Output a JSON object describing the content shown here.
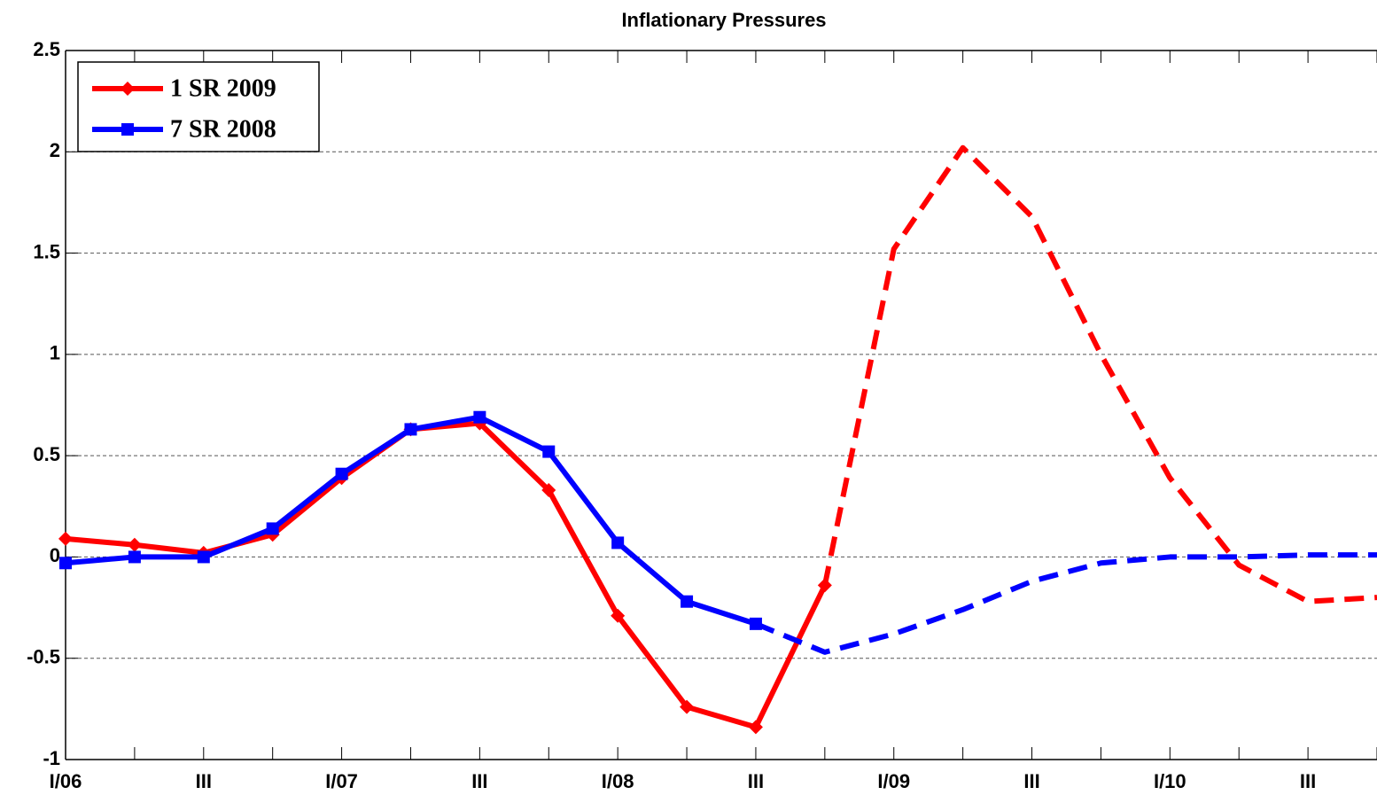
{
  "chart_data": {
    "type": "line",
    "title": "Inflationary Pressures",
    "categories": [
      "I/06",
      null,
      "III",
      null,
      "I/07",
      null,
      "III",
      null,
      "I/08",
      null,
      "III",
      null,
      "I/09",
      null,
      "III",
      null,
      "I/10",
      null,
      "III",
      null
    ],
    "series": [
      {
        "name": "1 SR 2009",
        "color": "#ff0000",
        "marker": "diamond",
        "dashed_from": 11,
        "values": [
          0.09,
          0.06,
          0.02,
          0.11,
          0.39,
          0.63,
          0.66,
          0.33,
          -0.29,
          -0.74,
          -0.84,
          -0.14,
          1.52,
          2.02,
          1.68,
          1.0,
          0.39,
          -0.04,
          -0.22,
          -0.2
        ]
      },
      {
        "name": "7 SR 2008",
        "color": "#0000ff",
        "marker": "square",
        "dashed_from": 10,
        "values": [
          -0.03,
          0.0,
          0.0,
          0.14,
          0.41,
          0.63,
          0.69,
          0.52,
          0.07,
          -0.22,
          -0.33,
          -0.47,
          -0.38,
          -0.26,
          -0.12,
          -0.03,
          0.0,
          0.0,
          0.01,
          0.01
        ]
      }
    ],
    "ylim": [
      -1,
      2.5
    ],
    "yticks": [
      -1,
      -0.5,
      0,
      0.5,
      1,
      1.5,
      2,
      2.5
    ],
    "grid": true,
    "legend": "upper left"
  }
}
